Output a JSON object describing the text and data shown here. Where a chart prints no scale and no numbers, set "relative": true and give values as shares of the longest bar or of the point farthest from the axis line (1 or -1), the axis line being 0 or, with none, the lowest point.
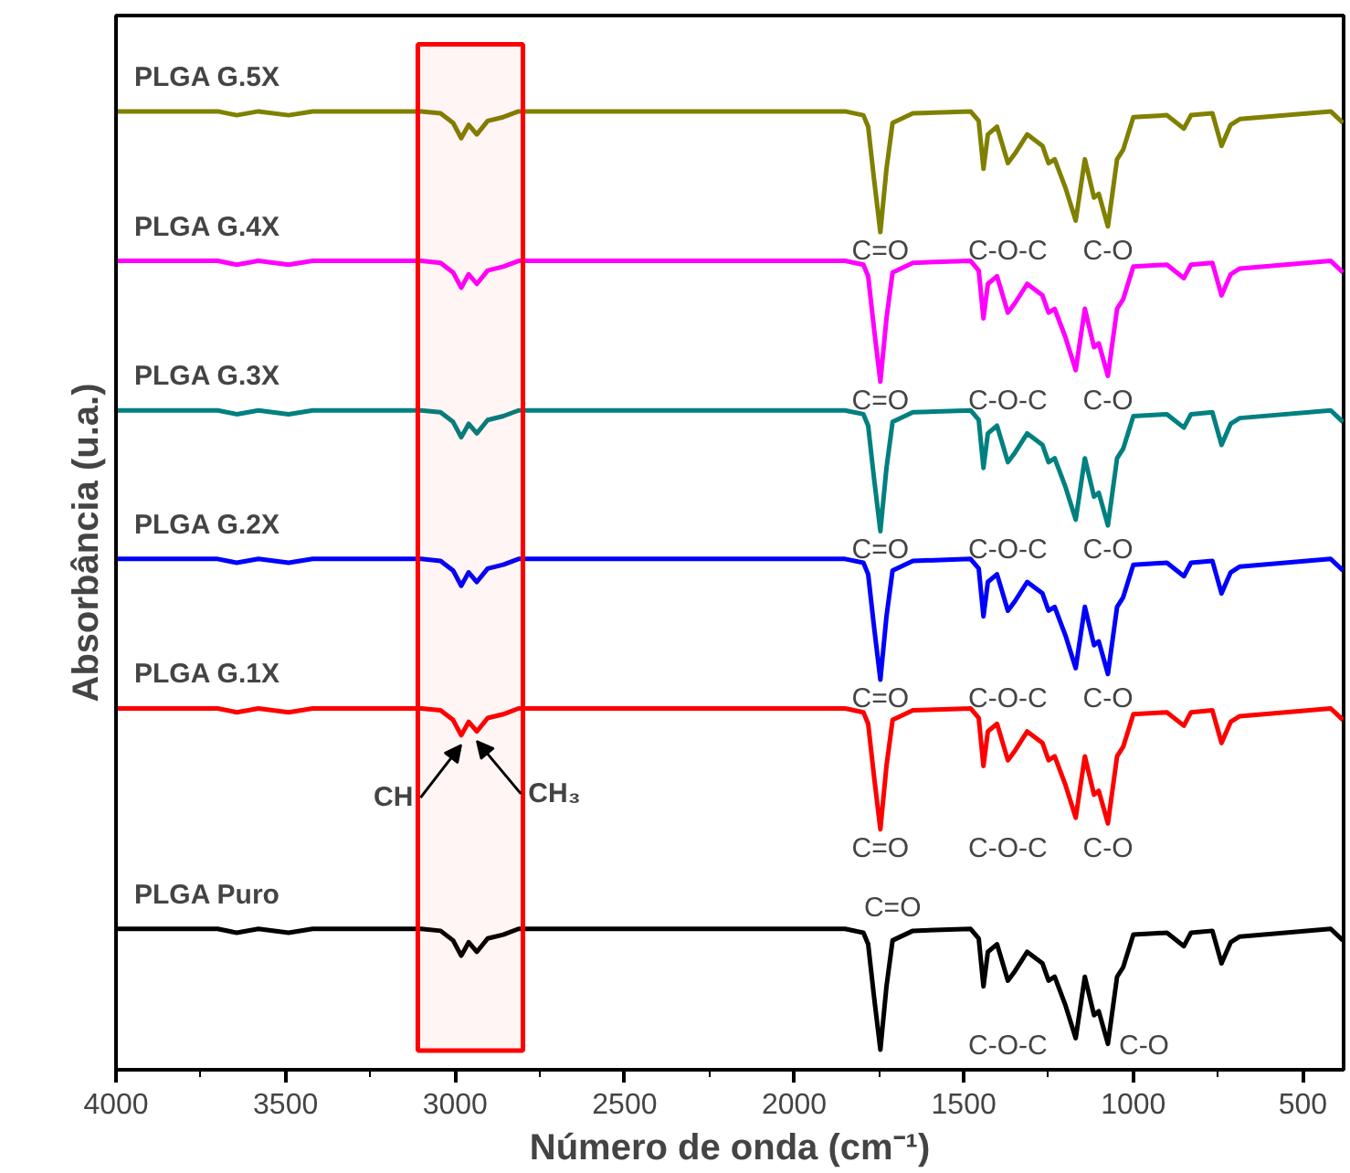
{
  "chart_data": {
    "type": "line",
    "relative": true,
    "xlabel": "Número de onda (cm⁻¹)",
    "ylabel": "Absorbância (u.a.)",
    "xlim": [
      4000,
      380
    ],
    "xticks": [
      4000,
      3500,
      3000,
      2500,
      2000,
      1500,
      1000,
      500
    ],
    "grid": false,
    "legend": false,
    "marker": "none",
    "line_style": "solid",
    "x": [
      4000,
      3700,
      3644,
      3580,
      3491,
      3420,
      3100,
      3043,
      3006,
      2982,
      2960,
      2936,
      2904,
      2858,
      2813,
      2400,
      1850,
      1796,
      1782,
      1765,
      1746,
      1728,
      1710,
      1650,
      1480,
      1456,
      1442,
      1429,
      1402,
      1370,
      1349,
      1313,
      1268,
      1250,
      1232,
      1200,
      1170,
      1143,
      1116,
      1102,
      1075,
      1048,
      1030,
      1000,
      901,
      851,
      830,
      767,
      740,
      713,
      686,
      418,
      382
    ],
    "series": [
      {
        "name": "PLGA G.5X",
        "color": "#808000",
        "values": [
          1,
          1,
          0.996,
          1,
          0.996,
          1,
          1,
          0.998,
          0.988,
          0.972,
          0.986,
          0.976,
          0.99,
          0.994,
          1,
          1,
          1,
          0.996,
          0.984,
          0.93,
          0.874,
          0.94,
          0.988,
          0.998,
          1,
          0.99,
          0.94,
          0.976,
          0.984,
          0.946,
          0.956,
          0.976,
          0.964,
          0.946,
          0.95,
          0.92,
          0.886,
          0.95,
          0.91,
          0.914,
          0.88,
          0.95,
          0.96,
          0.994,
          0.996,
          0.982,
          0.996,
          0.998,
          0.964,
          0.986,
          0.992,
          1,
          0.988
        ]
      },
      {
        "name": "PLGA G.4X",
        "color": "#ff00ff",
        "values": [
          0.844,
          0.844,
          0.84,
          0.844,
          0.84,
          0.844,
          0.844,
          0.842,
          0.832,
          0.816,
          0.83,
          0.82,
          0.834,
          0.838,
          0.844,
          0.844,
          0.844,
          0.84,
          0.828,
          0.774,
          0.718,
          0.784,
          0.832,
          0.842,
          0.844,
          0.834,
          0.784,
          0.82,
          0.828,
          0.79,
          0.8,
          0.82,
          0.808,
          0.79,
          0.794,
          0.764,
          0.73,
          0.794,
          0.754,
          0.758,
          0.724,
          0.794,
          0.804,
          0.838,
          0.84,
          0.826,
          0.84,
          0.842,
          0.808,
          0.83,
          0.836,
          0.844,
          0.832
        ]
      },
      {
        "name": "PLGA G.3X",
        "color": "#008080",
        "values": [
          0.688,
          0.688,
          0.684,
          0.688,
          0.684,
          0.688,
          0.688,
          0.686,
          0.676,
          0.66,
          0.674,
          0.664,
          0.678,
          0.682,
          0.688,
          0.688,
          0.688,
          0.684,
          0.672,
          0.618,
          0.562,
          0.628,
          0.676,
          0.686,
          0.688,
          0.678,
          0.628,
          0.664,
          0.672,
          0.634,
          0.644,
          0.664,
          0.652,
          0.634,
          0.638,
          0.608,
          0.574,
          0.638,
          0.598,
          0.602,
          0.568,
          0.638,
          0.648,
          0.682,
          0.684,
          0.67,
          0.684,
          0.686,
          0.652,
          0.674,
          0.68,
          0.688,
          0.676
        ]
      },
      {
        "name": "PLGA G.2X",
        "color": "#0000ff",
        "values": [
          0.533,
          0.533,
          0.529,
          0.533,
          0.529,
          0.533,
          0.533,
          0.531,
          0.521,
          0.505,
          0.519,
          0.509,
          0.523,
          0.527,
          0.533,
          0.533,
          0.533,
          0.529,
          0.517,
          0.463,
          0.407,
          0.473,
          0.521,
          0.531,
          0.533,
          0.523,
          0.473,
          0.509,
          0.517,
          0.479,
          0.489,
          0.509,
          0.497,
          0.479,
          0.483,
          0.453,
          0.419,
          0.483,
          0.443,
          0.447,
          0.413,
          0.483,
          0.493,
          0.527,
          0.529,
          0.515,
          0.529,
          0.531,
          0.497,
          0.519,
          0.525,
          0.533,
          0.521
        ]
      },
      {
        "name": "PLGA G.1X",
        "color": "#ff0000",
        "values": [
          0.377,
          0.377,
          0.373,
          0.377,
          0.373,
          0.377,
          0.377,
          0.375,
          0.365,
          0.349,
          0.363,
          0.353,
          0.367,
          0.371,
          0.377,
          0.377,
          0.377,
          0.373,
          0.361,
          0.307,
          0.251,
          0.317,
          0.365,
          0.375,
          0.377,
          0.367,
          0.317,
          0.353,
          0.361,
          0.323,
          0.333,
          0.353,
          0.341,
          0.323,
          0.327,
          0.297,
          0.263,
          0.327,
          0.287,
          0.291,
          0.257,
          0.327,
          0.337,
          0.371,
          0.373,
          0.359,
          0.373,
          0.375,
          0.341,
          0.363,
          0.369,
          0.377,
          0.365
        ]
      },
      {
        "name": "PLGA Puro",
        "color": "#000000",
        "values": [
          0.147,
          0.147,
          0.143,
          0.147,
          0.143,
          0.147,
          0.147,
          0.145,
          0.135,
          0.119,
          0.133,
          0.123,
          0.137,
          0.141,
          0.147,
          0.147,
          0.147,
          0.143,
          0.131,
          0.077,
          0.021,
          0.087,
          0.135,
          0.145,
          0.147,
          0.137,
          0.087,
          0.123,
          0.131,
          0.093,
          0.103,
          0.123,
          0.111,
          0.093,
          0.097,
          0.067,
          0.033,
          0.097,
          0.057,
          0.061,
          0.027,
          0.097,
          0.107,
          0.141,
          0.143,
          0.129,
          0.143,
          0.145,
          0.111,
          0.133,
          0.139,
          0.147,
          0.135
        ]
      }
    ],
    "bands": [
      {
        "axis": "x",
        "from": 3110,
        "to": 2800,
        "color": "#ff0000"
      }
    ],
    "annotations": [
      {
        "text": "C=O",
        "x": 1746,
        "y": 0.874
      },
      {
        "text": "C-O-C",
        "x": 1370,
        "y": 0.946
      },
      {
        "text": "C-O",
        "x": 1075,
        "y": 0.88
      },
      {
        "text": "C=O",
        "x": 1746,
        "y": 0.718
      },
      {
        "text": "C-O-C",
        "x": 1370,
        "y": 0.79
      },
      {
        "text": "C-O",
        "x": 1075,
        "y": 0.724
      },
      {
        "text": "C=O",
        "x": 1746,
        "y": 0.562
      },
      {
        "text": "C-O-C",
        "x": 1370,
        "y": 0.634
      },
      {
        "text": "C-O",
        "x": 1075,
        "y": 0.568
      },
      {
        "text": "C=O",
        "x": 1746,
        "y": 0.407
      },
      {
        "text": "C-O-C",
        "x": 1370,
        "y": 0.479
      },
      {
        "text": "C-O",
        "x": 1075,
        "y": 0.413
      },
      {
        "text": "C=O",
        "x": 1746,
        "y": 0.251
      },
      {
        "text": "C-O-C",
        "x": 1370,
        "y": 0.323
      },
      {
        "text": "C-O",
        "x": 1075,
        "y": 0.257
      },
      {
        "text": "C=O",
        "x": 1710,
        "y": 0.135
      },
      {
        "text": "C-O-C",
        "x": 1370,
        "y": 0.093
      },
      {
        "text": "C-O",
        "x": 1075,
        "y": 0.027
      },
      {
        "text": "CH",
        "x": 2982,
        "y": 0.349
      },
      {
        "text": "CH₃",
        "x": 2936,
        "y": 0.353
      }
    ]
  }
}
